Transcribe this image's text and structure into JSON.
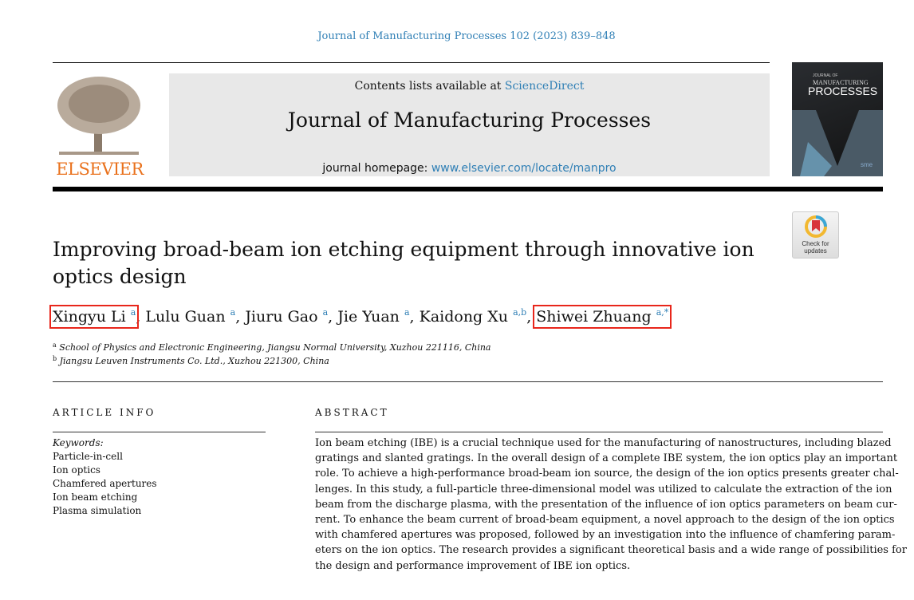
{
  "journal_ref": "Journal of Manufacturing Processes 102 (2023) 839–848",
  "header": {
    "contents_prefix": "Contents lists available at ",
    "contents_link": "ScienceDirect",
    "journal_title": "Journal of Manufacturing Processes",
    "homepage_prefix": "journal homepage: ",
    "homepage_link": "www.elsevier.com/locate/manpro",
    "publisher": "ELSEVIER",
    "cover_text": {
      "line1": "JOURNAL OF",
      "line2": "MANUFACTURING",
      "line3": "PROCESSES",
      "badge": "sme"
    }
  },
  "check_updates": {
    "line1": "Check for",
    "line2": "updates"
  },
  "title": "Improving broad-beam ion etching equipment through innovative ion optics design",
  "authors": [
    {
      "name": "Xingyu Li",
      "sup": "a",
      "highlighted": true
    },
    {
      "name": "Lulu Guan",
      "sup": "a"
    },
    {
      "name": "Jiuru Gao",
      "sup": "a"
    },
    {
      "name": "Jie Yuan",
      "sup": "a"
    },
    {
      "name": "Kaidong Xu",
      "sup": "a,b"
    },
    {
      "name": "Shiwei Zhuang",
      "sup": "a,*",
      "highlighted": true
    }
  ],
  "affiliations": [
    {
      "mark": "a",
      "text": "School of Physics and Electronic Engineering, Jiangsu Normal University, Xuzhou 221116, China"
    },
    {
      "mark": "b",
      "text": "Jiangsu Leuven Instruments Co. Ltd., Xuzhou 221300, China"
    }
  ],
  "article_info": {
    "heading": "ARTICLE INFO",
    "keywords_label": "Keywords:",
    "keywords": [
      "Particle-in-cell",
      "Ion optics",
      "Chamfered apertures",
      "Ion beam etching",
      "Plasma simulation"
    ]
  },
  "abstract": {
    "heading": "ABSTRACT",
    "lines": [
      "Ion beam etching (IBE) is a crucial technique used for the manufacturing of nanostructures, including blazed",
      "gratings and slanted gratings. In the overall design of a complete IBE system, the ion optics play an important",
      "role. To achieve a high-performance broad-beam ion source, the design of the ion optics presents greater chal-",
      "lenges. In this study, a full-particle three-dimensional model was utilized to calculate the extraction of the ion",
      "beam from the discharge plasma, with the presentation of the influence of ion optics parameters on beam cur-",
      "rent. To enhance the beam current of broad-beam equipment, a novel approach to the design of the ion optics",
      "with chamfered apertures was proposed, followed by an investigation into the influence of chamfering param-",
      "eters on the ion optics. The research provides a significant theoretical basis and a wide range of possibilities for",
      "the design and performance improvement of IBE ion optics."
    ]
  },
  "colors": {
    "link": "#2f7fb5",
    "highlight": "#e8261b",
    "elsevier_orange": "#e9711c"
  }
}
